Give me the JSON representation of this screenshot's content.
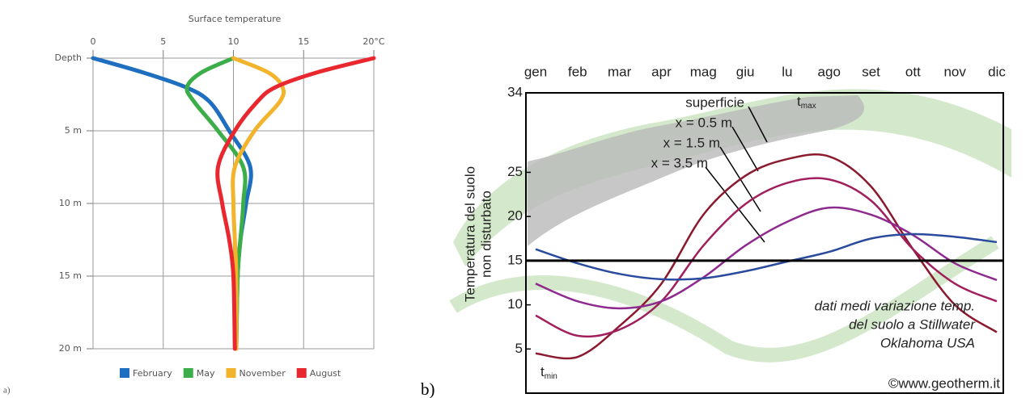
{
  "chart_data": [
    {
      "type": "profile",
      "label": "a)",
      "title": "Surface temperature",
      "xlim": [
        0,
        20
      ],
      "xticks": [
        0,
        5,
        10,
        15,
        {
          "value": 20,
          "label": "20°C"
        }
      ],
      "ylim": [
        0,
        20
      ],
      "yticks": [
        {
          "value": 0,
          "label": "Depth"
        },
        {
          "value": 5,
          "label": "5 m"
        },
        {
          "value": 10,
          "label": "10 m"
        },
        {
          "value": 15,
          "label": "15 m"
        },
        {
          "value": 20,
          "label": "20 m"
        }
      ],
      "depth": [
        0,
        1,
        2,
        3,
        5,
        7.5,
        10,
        12.5,
        15,
        20
      ],
      "grid": true,
      "legend": "bottom",
      "series": [
        {
          "name": "February",
          "color": "#1f6fc0",
          "values": [
            0,
            3.6,
            6.6,
            8.3,
            9.7,
            11.2,
            10.9,
            10.5,
            10.3,
            10.2
          ]
        },
        {
          "name": "May",
          "color": "#3cae49",
          "values": [
            10,
            7.7,
            6.7,
            7.2,
            8.9,
            10.7,
            10.7,
            10.5,
            10.3,
            10.2
          ]
        },
        {
          "name": "November",
          "color": "#f2b42c",
          "values": [
            10,
            12.5,
            13.5,
            13.3,
            11.5,
            10.1,
            10.0,
            10.1,
            10.2,
            10.2
          ]
        },
        {
          "name": "August",
          "color": "#e8282e",
          "values": [
            20,
            15.9,
            13.0,
            11.7,
            10.1,
            8.9,
            9.2,
            9.7,
            10.0,
            10.1
          ]
        }
      ]
    },
    {
      "type": "line",
      "label": "b)",
      "categories": [
        "gen",
        "feb",
        "mar",
        "apr",
        "mag",
        "giu",
        "lu",
        "ago",
        "set",
        "ott",
        "nov",
        "dic"
      ],
      "ylim": [
        0,
        34
      ],
      "yticks": [
        5,
        10,
        15,
        20,
        25,
        34
      ],
      "ylabel": [
        "Temperatura del suolo",
        "non disturbato"
      ],
      "hline": 15,
      "series": [
        {
          "name": "superficie",
          "color": "#8b1a2e",
          "values": [
            4.5,
            4.1,
            7.6,
            12.4,
            20.2,
            24.6,
            26.5,
            26.8,
            23.4,
            16.3,
            10.0,
            6.9
          ]
        },
        {
          "name": "x = 0.5 m",
          "color": "#a01f5c",
          "values": [
            8.8,
            6.5,
            7.2,
            10.4,
            16.7,
            21.4,
            23.8,
            24.2,
            21.8,
            16.3,
            12.4,
            10.4
          ]
        },
        {
          "name": "x = 1.5 m",
          "color": "#8e2a8e",
          "values": [
            12.4,
            10.4,
            9.6,
            10.4,
            13.1,
            16.7,
            19.4,
            21.0,
            20.2,
            17.9,
            14.7,
            12.8
          ]
        },
        {
          "name": "x = 3.5 m",
          "color": "#2a4a9e",
          "values": [
            16.3,
            14.7,
            13.5,
            12.9,
            13.0,
            13.8,
            14.9,
            16.0,
            17.5,
            18.0,
            17.7,
            17.1
          ]
        }
      ],
      "max_label": {
        "text": "t",
        "sub": "max"
      },
      "min_label": {
        "text": "t",
        "sub": "min"
      },
      "annotations": [
        "dati medi variazione temp.",
        "del suolo a Stillwater",
        "Oklahoma USA"
      ],
      "credit": "©www.geotherm.it"
    }
  ]
}
